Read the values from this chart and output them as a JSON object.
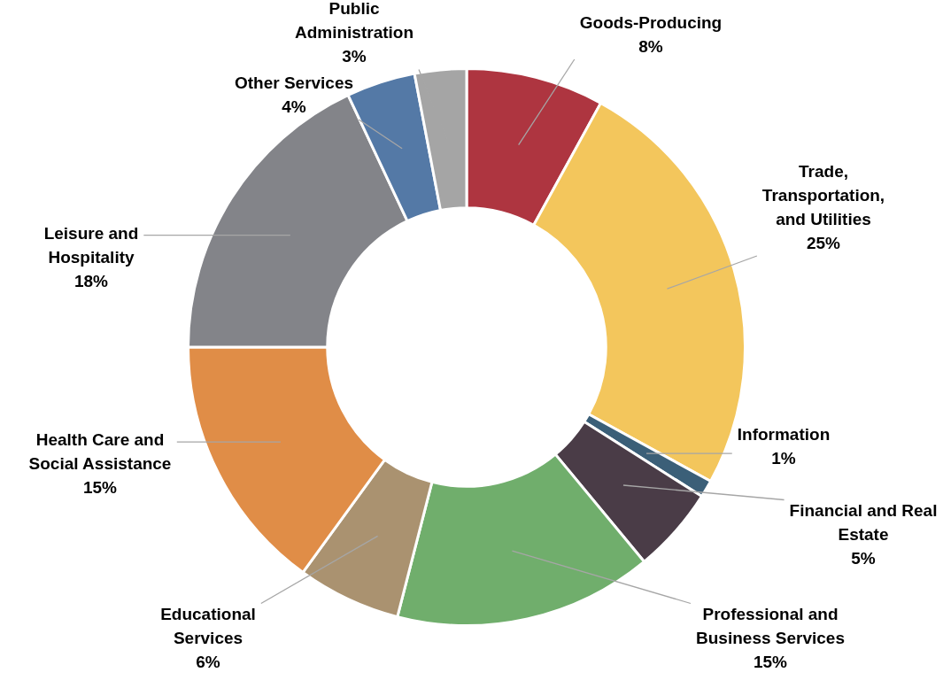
{
  "chart_data": {
    "type": "donut",
    "legend": false,
    "categories": [
      "Goods-Producing",
      "Trade, Transportation, and Utilities",
      "Information",
      "Financial and Real Estate",
      "Professional and Business Services",
      "Educational Services",
      "Health Care and Social Assistance",
      "Leisure and Hospitality",
      "Other Services",
      "Public Administration"
    ],
    "values": [
      8,
      25,
      1,
      5,
      15,
      6,
      15,
      18,
      4,
      3
    ],
    "value_labels": [
      "8%",
      "25%",
      "1%",
      "5%",
      "15%",
      "6%",
      "15%",
      "18%",
      "4%",
      "3%"
    ],
    "colors": [
      "#ae3540",
      "#f3c65c",
      "#3b5f78",
      "#4a3c47",
      "#70ae6c",
      "#aa9270",
      "#e08d47",
      "#838489",
      "#5479a6",
      "#a5a5a5"
    ]
  }
}
